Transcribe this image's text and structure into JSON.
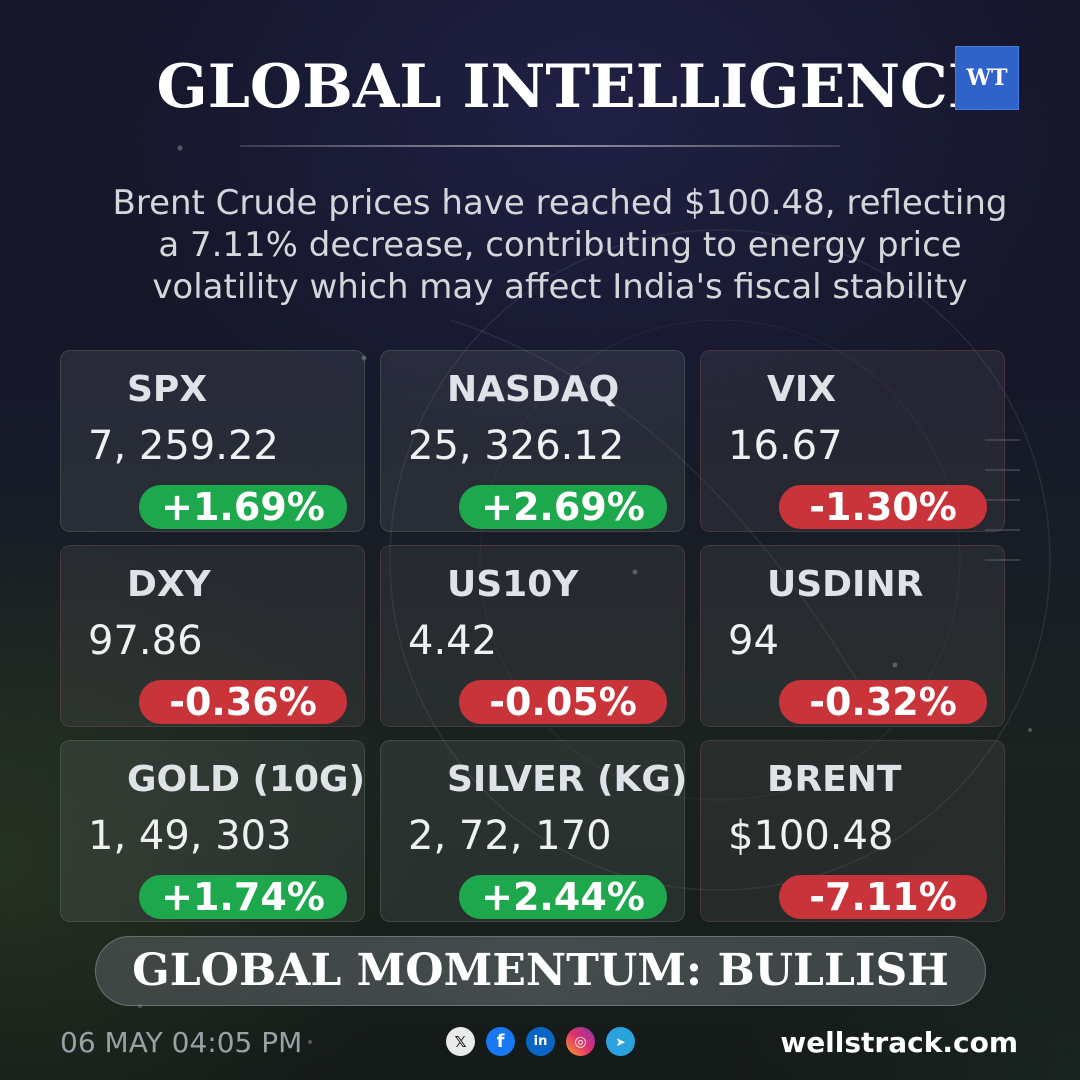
{
  "header": {
    "title": "GLOBAL INTELLIGENCE",
    "logo_text": "WT"
  },
  "headline": {
    "line1": "Brent Crude prices have reached $100.48, reflecting",
    "line2": "a 7.11% decrease, contributing to energy price",
    "line3": "volatility which may affect India's fiscal stability"
  },
  "colors": {
    "up": "#1ea84e",
    "down": "#c9343a",
    "logo": "#2f63c9"
  },
  "cards": [
    {
      "name": "SPX",
      "value": "7, 259.22",
      "change": "+1.69%",
      "direction": "up"
    },
    {
      "name": "NASDAQ",
      "value": "25, 326.12",
      "change": "+2.69%",
      "direction": "up"
    },
    {
      "name": "VIX",
      "value": "16.67",
      "change": "-1.30%",
      "direction": "down"
    },
    {
      "name": "DXY",
      "value": "97.86",
      "change": "-0.36%",
      "direction": "down"
    },
    {
      "name": "US10Y",
      "value": "4.42",
      "change": "-0.05%",
      "direction": "down"
    },
    {
      "name": "USDINR",
      "value": "94",
      "change": "-0.32%",
      "direction": "down"
    },
    {
      "name": "GOLD (10G)",
      "value": "1, 49, 303",
      "change": "+1.74%",
      "direction": "up"
    },
    {
      "name": "SILVER (KG)",
      "value": "2, 72, 170",
      "change": "+2.44%",
      "direction": "up"
    },
    {
      "name": "BRENT",
      "value": "$100.48",
      "change": "-7.11%",
      "direction": "down"
    }
  ],
  "momentum": "GLOBAL MOMENTUM: BULLISH",
  "footer": {
    "date": "06 MAY 04:05 PM",
    "site": "wellstrack.com",
    "social_icons": [
      {
        "name": "x-icon",
        "glyph": "𝕏"
      },
      {
        "name": "facebook-icon",
        "glyph": "f"
      },
      {
        "name": "linkedin-icon",
        "glyph": "in"
      },
      {
        "name": "instagram-icon",
        "glyph": "◎"
      },
      {
        "name": "telegram-icon",
        "glyph": "➤"
      }
    ]
  }
}
